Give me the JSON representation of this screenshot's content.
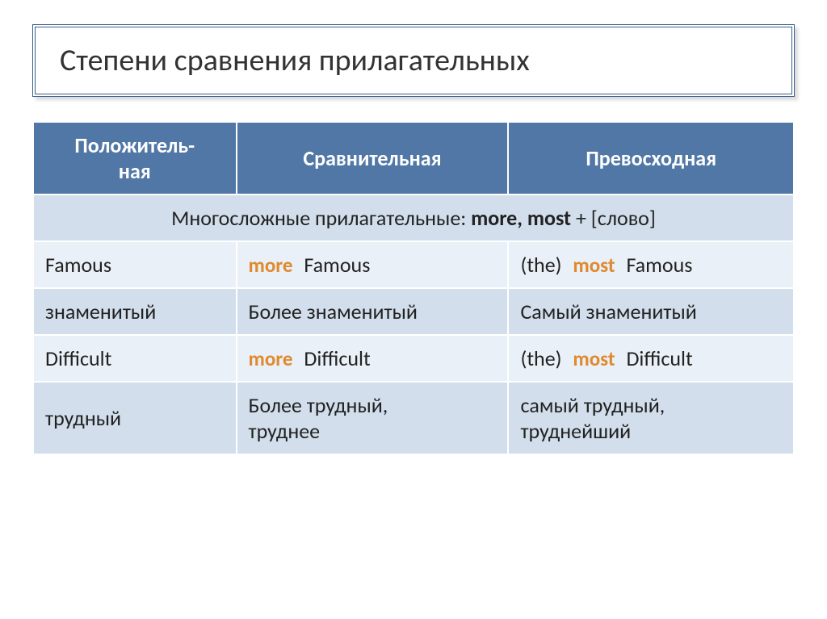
{
  "title": "Степени сравнения прилагательных",
  "colors": {
    "header_bg": "#5077a5",
    "header_text": "#ffffff",
    "subheader_bg": "#d2deec",
    "row_light_bg": "#eaf0f7",
    "row_alt_bg": "#d2deec",
    "accent": "#e08a2f",
    "border_outer": "#3b5f8a",
    "cell_border": "#ffffff",
    "text": "#222222"
  },
  "typography": {
    "title_fontsize": 38,
    "cell_fontsize": 26,
    "font_family": "Calibri"
  },
  "table": {
    "columns": [
      {
        "label_line1": "Положитель-",
        "label_line2": "ная"
      },
      {
        "label_line1": "Сравнительная",
        "label_line2": ""
      },
      {
        "label_line1": "Превосходная",
        "label_line2": ""
      }
    ],
    "subheader": {
      "prefix": "Многосложные прилагательные: ",
      "bold": "more, most",
      "suffix": " + [слово]"
    },
    "rows": [
      {
        "bg": "light",
        "cells": [
          {
            "plain": "Famous"
          },
          {
            "accent": "more",
            "word": "Famous"
          },
          {
            "paren": "(the)",
            "accent": "most",
            "word": "Famous"
          }
        ]
      },
      {
        "bg": "alt",
        "cells": [
          {
            "plain": "знаменитый"
          },
          {
            "plain": "Более знаменитый"
          },
          {
            "plain": "Самый знаменитый"
          }
        ]
      },
      {
        "bg": "light",
        "cells": [
          {
            "plain": "Difficult"
          },
          {
            "accent": "more",
            "word": "Difficult"
          },
          {
            "paren": "(the)",
            "accent": "most",
            "word": "Difficult"
          }
        ]
      },
      {
        "bg": "alt",
        "cells": [
          {
            "plain": "трудный"
          },
          {
            "line1": "Более трудный,",
            "line2": "труднее"
          },
          {
            "line1": "самый трудный,",
            "line2": "труднейший"
          }
        ]
      }
    ]
  }
}
